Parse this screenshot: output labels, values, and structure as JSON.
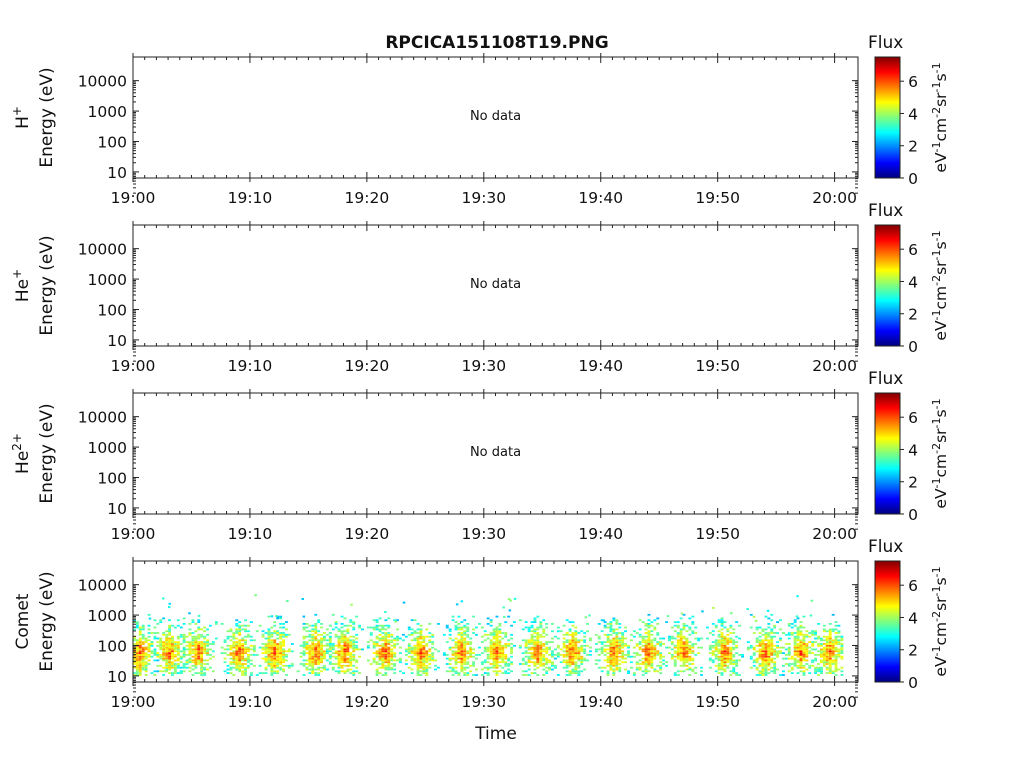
{
  "title": "RPCICA151108T19.PNG",
  "xlabel": "Time",
  "no_data_text": "No data",
  "colorbar": {
    "title": "Flux",
    "unit_parts": [
      "eV",
      "-1",
      "cm",
      "-2",
      "sr",
      "-1",
      "s",
      "-1"
    ],
    "ticks": [
      "0",
      "2",
      "4",
      "6"
    ],
    "range": [
      0,
      7.5
    ],
    "colormap": "jet",
    "colors": [
      "#00007f",
      "#0000ff",
      "#007fff",
      "#00ffff",
      "#7fff7f",
      "#ffff00",
      "#ff7f00",
      "#ff0000",
      "#7f0000"
    ]
  },
  "chart_data": [
    {
      "type": "heatmap",
      "species": "H",
      "species_sup": "+",
      "ylabel": "Energy (eV)",
      "x_ticks": [
        "19:00",
        "19:10",
        "19:20",
        "19:30",
        "19:40",
        "19:50",
        "20:00"
      ],
      "y_ticks": [
        "10",
        "100",
        "1000",
        "10000"
      ],
      "y_scale": "log",
      "status": "No data"
    },
    {
      "type": "heatmap",
      "species": "He",
      "species_sup": "+",
      "ylabel": "Energy (eV)",
      "x_ticks": [
        "19:00",
        "19:10",
        "19:20",
        "19:30",
        "19:40",
        "19:50",
        "20:00"
      ],
      "y_ticks": [
        "10",
        "100",
        "1000",
        "10000"
      ],
      "y_scale": "log",
      "status": "No data"
    },
    {
      "type": "heatmap",
      "species": "He",
      "species_sup": "2+",
      "ylabel": "Energy (eV)",
      "x_ticks": [
        "19:00",
        "19:10",
        "19:20",
        "19:30",
        "19:40",
        "19:50",
        "20:00"
      ],
      "y_ticks": [
        "10",
        "100",
        "1000",
        "10000"
      ],
      "y_scale": "log",
      "status": "No data"
    },
    {
      "type": "heatmap",
      "species": "Comet",
      "species_sup": "",
      "ylabel": "Energy (eV)",
      "x_ticks": [
        "19:00",
        "19:10",
        "19:20",
        "19:30",
        "19:40",
        "19:50",
        "20:00"
      ],
      "y_ticks": [
        "10",
        "100",
        "1000",
        "10000"
      ],
      "y_scale": "log",
      "status": "",
      "bursts_minutes": [
        0.5,
        3.0,
        5.5,
        9.0,
        12.0,
        15.5,
        18.0,
        21.5,
        24.5,
        28.0,
        31.0,
        34.5,
        37.5,
        41.0,
        44.0,
        47.0,
        50.5,
        54.0,
        57.0,
        59.5
      ]
    }
  ]
}
